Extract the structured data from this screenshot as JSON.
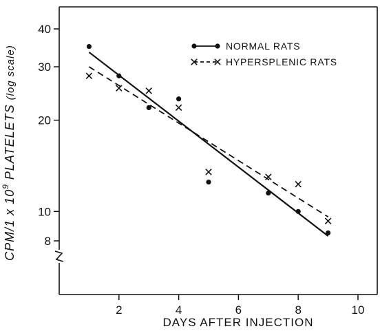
{
  "chart_data": {
    "type": "scatter",
    "title": "",
    "xlabel": "DAYS AFTER INJECTION",
    "ylabel": "CPM/1 x 10⁹ PLATELETS (log scale)",
    "ylabel_parts": {
      "before_exp": "CPM/1 x 10",
      "exponent": "9",
      "after_exp": " PLATELETS ",
      "note": "(log scale)"
    },
    "xlim": [
      0,
      11
    ],
    "ylim": [
      6,
      42
    ],
    "y_scale": "log",
    "y_axis_break": true,
    "xticks": [
      2,
      4,
      6,
      8,
      10
    ],
    "xtick_labels": [
      "2",
      "4",
      "6",
      "8",
      "10"
    ],
    "yticks": [
      8,
      10,
      20,
      30,
      40
    ],
    "ytick_labels": [
      "8",
      "10",
      "20",
      "30",
      "40"
    ],
    "legend_position": "top-right",
    "series": [
      {
        "name": "NORMAL RATS",
        "marker": "dot",
        "line": "solid",
        "points": [
          [
            1,
            35
          ],
          [
            2,
            28
          ],
          [
            3,
            22
          ],
          [
            4,
            23.5
          ],
          [
            5,
            12.5
          ],
          [
            7,
            11.5
          ],
          [
            8,
            10
          ],
          [
            9,
            8.5
          ]
        ],
        "fit": [
          [
            1,
            33.5
          ],
          [
            9,
            8.3
          ]
        ]
      },
      {
        "name": "HYPERSPLENIC RATS",
        "marker": "x",
        "line": "dashed",
        "points": [
          [
            1,
            28
          ],
          [
            2,
            25.5
          ],
          [
            3,
            25
          ],
          [
            4,
            22
          ],
          [
            5,
            13.5
          ],
          [
            7,
            13
          ],
          [
            8,
            12.3
          ],
          [
            9,
            9.3
          ]
        ],
        "fit": [
          [
            1,
            30
          ],
          [
            9,
            9.6
          ]
        ]
      }
    ]
  }
}
